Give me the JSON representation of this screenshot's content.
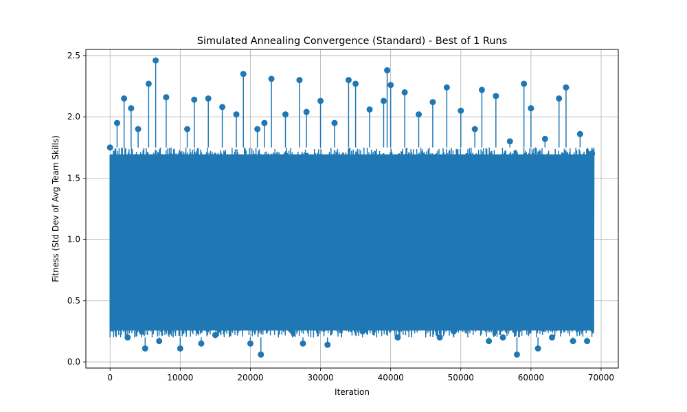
{
  "chart_data": {
    "type": "line",
    "title": "Simulated Annealing Convergence (Standard) - Best of 1 Runs",
    "xlabel": "Iteration",
    "ylabel": "Fitness (Std Dev of Avg Team Skills)",
    "xlim": [
      -3450,
      72450
    ],
    "ylim": [
      -0.05,
      2.55
    ],
    "x_ticks": [
      0,
      10000,
      20000,
      30000,
      40000,
      50000,
      60000,
      70000
    ],
    "x_tick_labels": [
      "0",
      "10000",
      "20000",
      "30000",
      "40000",
      "50000",
      "60000",
      "70000"
    ],
    "y_ticks": [
      0.0,
      0.5,
      1.0,
      1.5,
      2.0,
      2.5
    ],
    "y_tick_labels": [
      "0.0",
      "0.5",
      "1.0",
      "1.5",
      "2.0",
      "2.5"
    ],
    "grid": true,
    "legend": "none",
    "series": [
      {
        "color": "#1f77b4",
        "marker": "circle",
        "x_range": [
          0,
          69000
        ],
        "band_low": 0.2,
        "band_high": 1.75,
        "sample_x": [
          0,
          500,
          1000,
          1500,
          2000,
          2500,
          3000,
          3500,
          4000,
          4500,
          5000,
          5500,
          6000,
          6500,
          7000,
          8000,
          9000,
          10000,
          11000,
          12000,
          13000,
          14000,
          15000,
          16000,
          17000,
          18000,
          19000,
          20000,
          21000,
          21500,
          22000,
          23000,
          24000,
          25000,
          26000,
          27000,
          27500,
          28000,
          29000,
          30000,
          31000,
          32000,
          33000,
          34000,
          35000,
          36000,
          37000,
          38000,
          39000,
          39500,
          40000,
          41000,
          42000,
          43000,
          44000,
          45000,
          46000,
          47000,
          48000,
          49000,
          50000,
          51000,
          52000,
          53000,
          54000,
          55000,
          56000,
          57000,
          58000,
          59000,
          60000,
          61000,
          62000,
          63000,
          64000,
          65000,
          66000,
          67000,
          68000,
          68700
        ],
        "sample_y": [
          1.75,
          0.8,
          1.95,
          0.3,
          2.15,
          0.2,
          2.07,
          0.45,
          1.9,
          0.25,
          0.11,
          2.27,
          0.35,
          2.46,
          0.17,
          2.16,
          0.3,
          0.11,
          1.9,
          2.14,
          0.15,
          2.15,
          0.22,
          2.08,
          0.4,
          2.02,
          2.35,
          0.15,
          1.9,
          0.06,
          1.95,
          2.31,
          0.3,
          2.02,
          0.25,
          2.3,
          0.15,
          2.04,
          0.3,
          2.13,
          0.14,
          1.95,
          0.3,
          2.3,
          2.27,
          0.25,
          2.06,
          0.3,
          2.13,
          2.38,
          2.26,
          0.2,
          2.2,
          0.28,
          2.02,
          0.3,
          2.12,
          0.2,
          2.24,
          0.25,
          2.05,
          0.3,
          1.9,
          2.22,
          0.17,
          2.17,
          0.2,
          1.8,
          0.06,
          2.27,
          2.07,
          0.11,
          1.82,
          0.2,
          2.15,
          2.24,
          0.17,
          1.86,
          0.17,
          1.7
        ]
      }
    ]
  }
}
